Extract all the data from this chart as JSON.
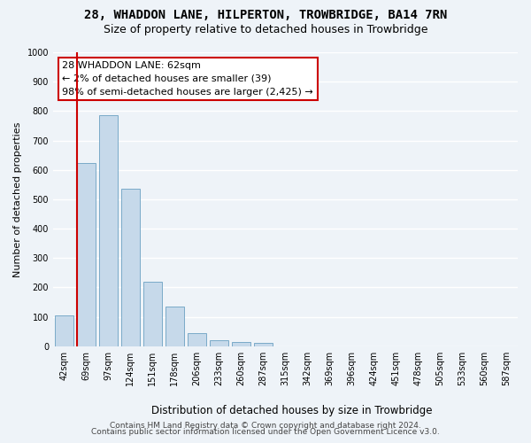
{
  "title1": "28, WHADDON LANE, HILPERTON, TROWBRIDGE, BA14 7RN",
  "title2": "Size of property relative to detached houses in Trowbridge",
  "xlabel": "Distribution of detached houses by size in Trowbridge",
  "ylabel": "Number of detached properties",
  "categories": [
    "42sqm",
    "69sqm",
    "97sqm",
    "124sqm",
    "151sqm",
    "178sqm",
    "206sqm",
    "233sqm",
    "260sqm",
    "287sqm",
    "315sqm",
    "342sqm",
    "369sqm",
    "396sqm",
    "424sqm",
    "451sqm",
    "478sqm",
    "505sqm",
    "533sqm",
    "560sqm",
    "587sqm"
  ],
  "values": [
    105,
    623,
    787,
    537,
    220,
    135,
    45,
    20,
    15,
    12,
    0,
    0,
    0,
    0,
    0,
    0,
    0,
    0,
    0,
    0,
    0
  ],
  "bar_color": "#c6d9ea",
  "bar_edge_color": "#7aaac8",
  "highlight_line_color": "#cc0000",
  "annotation_text": "28 WHADDON LANE: 62sqm\n← 2% of detached houses are smaller (39)\n98% of semi-detached houses are larger (2,425) →",
  "annotation_box_facecolor": "#ffffff",
  "annotation_box_edgecolor": "#cc0000",
  "ylim": [
    0,
    1000
  ],
  "yticks": [
    0,
    100,
    200,
    300,
    400,
    500,
    600,
    700,
    800,
    900,
    1000
  ],
  "footer1": "Contains HM Land Registry data © Crown copyright and database right 2024.",
  "footer2": "Contains public sector information licensed under the Open Government Licence v3.0.",
  "background_color": "#eef3f8",
  "grid_color": "#ffffff",
  "title1_fontsize": 10,
  "title2_fontsize": 9,
  "xlabel_fontsize": 8.5,
  "ylabel_fontsize": 8,
  "tick_fontsize": 7,
  "annotation_fontsize": 8,
  "footer_fontsize": 6.5
}
